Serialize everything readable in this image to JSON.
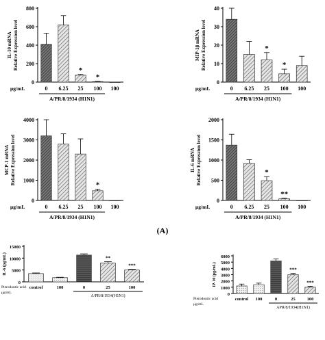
{
  "panel_label": "(A)",
  "colors": {
    "axis": "#000000",
    "bar_stroke": "#333333",
    "dark": "#444444",
    "mid": "#888888",
    "light": "#cccccc"
  },
  "chart_data": [
    {
      "type": "bar",
      "ylabel": "IL-10 mRNA\nRelative Expression level",
      "unit_label": "μg/mL",
      "categories": [
        "0",
        "6.25",
        "25",
        "100",
        "100"
      ],
      "group_label": "A/PR/8/1934 (H1N1)",
      "values": [
        410,
        620,
        75,
        5,
        0
      ],
      "errors": [
        120,
        100,
        8,
        3,
        0
      ],
      "significance": [
        "",
        "",
        "*",
        "*",
        ""
      ],
      "ylim": [
        0,
        800
      ],
      "yticks": [
        0,
        200,
        400,
        600,
        800
      ]
    },
    {
      "type": "bar",
      "ylabel": "MIP-1β mRNA\nRelative Expression level",
      "unit_label": "μg/mL",
      "categories": [
        "0",
        "6.25",
        "25",
        "100",
        "100"
      ],
      "group_label": "A/PR/8/1934 (H1N1)",
      "values": [
        34,
        15,
        12,
        4.5,
        9
      ],
      "errors": [
        6,
        7,
        4,
        2.5,
        5
      ],
      "significance": [
        "",
        "",
        "*",
        "*",
        ""
      ],
      "ylim": [
        0,
        40
      ],
      "yticks": [
        0,
        10,
        20,
        30,
        40
      ]
    },
    {
      "type": "bar",
      "ylabel": "MCP-1 mRNA\nRelative Expression level",
      "unit_label": "μg/mL",
      "categories": [
        "0",
        "6.25",
        "25",
        "100",
        "100"
      ],
      "group_label": "A/PR/8/1934 (H1N1)",
      "values": [
        3200,
        2800,
        2300,
        480,
        0
      ],
      "errors": [
        800,
        500,
        750,
        80,
        0
      ],
      "significance": [
        "",
        "",
        "",
        "*",
        ""
      ],
      "ylim": [
        0,
        4000
      ],
      "yticks": [
        0,
        1000,
        2000,
        3000,
        4000
      ]
    },
    {
      "type": "bar",
      "ylabel": "IL-6 mRNA\nRelative Expression level",
      "unit_label": "μg/mL",
      "categories": [
        "0",
        "6.25",
        "25",
        "100",
        "100"
      ],
      "group_label": "A/PR/8/1934 (H1N1)",
      "values": [
        1370,
        920,
        490,
        40,
        0
      ],
      "errors": [
        270,
        90,
        100,
        15,
        0
      ],
      "significance": [
        "",
        "",
        "*",
        "**",
        ""
      ],
      "ylim": [
        0,
        2000
      ],
      "yticks": [
        0,
        500,
        1000,
        1500,
        2000
      ]
    },
    {
      "type": "bar",
      "ylabel": "IL-6 (pg/mL)",
      "row_label": "Pterodontic acid\nμg/mL",
      "categories": [
        "control",
        "100",
        "0",
        "25",
        "100"
      ],
      "group_label": "A/PR/8/1934(H1N1)",
      "values": [
        3500,
        1800,
        11300,
        8000,
        5000
      ],
      "errors": [
        250,
        150,
        500,
        500,
        300
      ],
      "significance": [
        "",
        "",
        "",
        "**",
        "***"
      ],
      "ylim": [
        0,
        15000
      ],
      "yticks": [
        0,
        5000,
        10000,
        15000
      ]
    },
    {
      "type": "bar",
      "ylabel": "IP-10 (pg/mL)",
      "row_label": "Pterodontic acid\nμg/mL",
      "categories": [
        "control",
        "100",
        "0",
        "25",
        "100"
      ],
      "group_label": "APR/8/1934(H1N1)",
      "values": [
        1200,
        1400,
        5200,
        3000,
        1000
      ],
      "errors": [
        300,
        250,
        300,
        200,
        150
      ],
      "significance": [
        "",
        "",
        "",
        "***",
        "***"
      ],
      "ylim": [
        0,
        6000
      ],
      "yticks": [
        0,
        1000,
        2000,
        3000,
        4000,
        5000,
        6000
      ]
    }
  ]
}
